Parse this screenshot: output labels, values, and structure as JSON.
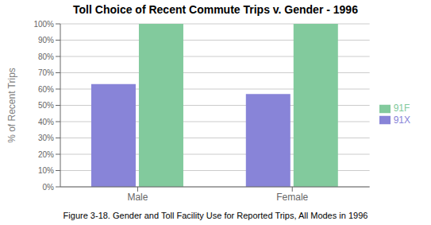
{
  "chart_data": {
    "type": "bar",
    "title": "Toll Choice of Recent Commute Trips v. Gender - 1996",
    "caption": "Figure 3-18. Gender and Toll Facility Use for Reported Trips, All Modes in 1996",
    "categories": [
      "Male",
      "Female"
    ],
    "series": [
      {
        "name": "91X",
        "color": "#8884d8",
        "values": [
          63,
          57
        ]
      },
      {
        "name": "91F",
        "color": "#82ca9d",
        "values": [
          100,
          100
        ]
      }
    ],
    "y_label": "% of Recent Trips",
    "ylim": [
      0,
      100
    ],
    "yticks": [
      {
        "value": 0,
        "label": "0%"
      },
      {
        "value": 10,
        "label": "10%"
      },
      {
        "value": 20,
        "label": "20%"
      },
      {
        "value": 30,
        "label": "30%"
      },
      {
        "value": 40,
        "label": "40%"
      },
      {
        "value": 50,
        "label": "50%"
      },
      {
        "value": 60,
        "label": "60%"
      },
      {
        "value": 70,
        "label": "70%"
      },
      {
        "value": 80,
        "label": "80%"
      },
      {
        "value": 90,
        "label": "90%"
      },
      {
        "value": 100,
        "label": "100%"
      }
    ],
    "grid": true,
    "legend": "right"
  }
}
